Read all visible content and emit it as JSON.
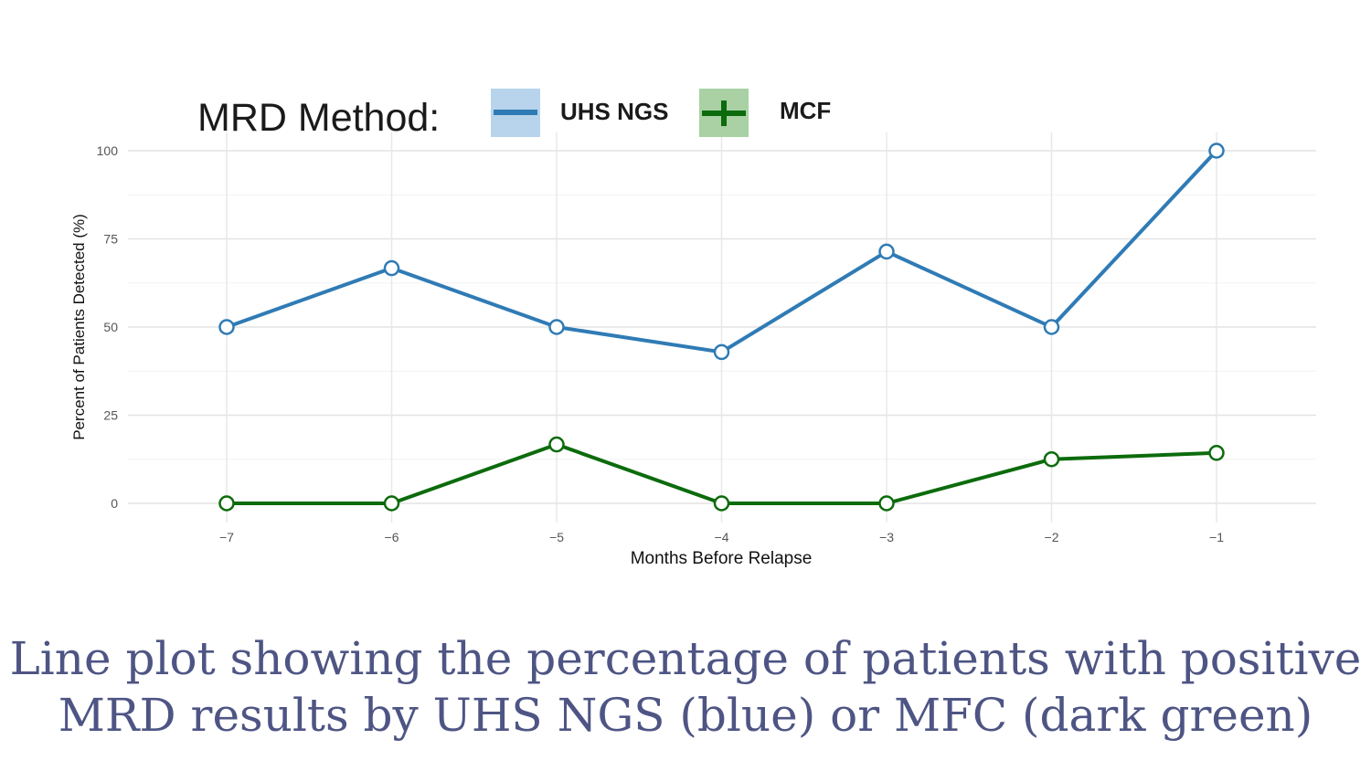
{
  "legend": {
    "title": "MRD Method:",
    "items": [
      {
        "label": "UHS NGS",
        "color": "#2f7bb5",
        "swatch_bg": "#b7d4ec",
        "icon": "line-key-icon"
      },
      {
        "label": "MCF",
        "color": "#0c6b0c",
        "swatch_bg": "#a9d1a3",
        "icon": "plus-key-icon"
      }
    ]
  },
  "caption": {
    "line1": "Line plot showing the percentage of patients with positive",
    "line2": "MRD results by UHS NGS (blue) or MFC (dark green)"
  },
  "chart_data": {
    "type": "line",
    "xlabel": "Months Before Relapse",
    "ylabel": "Percent of Patients Detected (%)",
    "x": [
      -7,
      -6,
      -5,
      -4,
      -3,
      -2,
      -1
    ],
    "x_tick_labels": [
      "−7",
      "−6",
      "−5",
      "−4",
      "−3",
      "−2",
      "−1"
    ],
    "y_ticks": [
      0,
      25,
      50,
      75,
      100
    ],
    "xlim": [
      -7.5,
      -0.4
    ],
    "ylim": [
      0,
      100
    ],
    "grid": true,
    "legend_position": "top",
    "series": [
      {
        "name": "UHS NGS",
        "color": "#2f7bb5",
        "values": [
          50,
          66.7,
          50,
          42.9,
          71.4,
          50,
          100
        ]
      },
      {
        "name": "MCF",
        "color": "#0c6b0c",
        "values": [
          0,
          0,
          16.7,
          0,
          0,
          12.5,
          14.3
        ]
      }
    ]
  }
}
